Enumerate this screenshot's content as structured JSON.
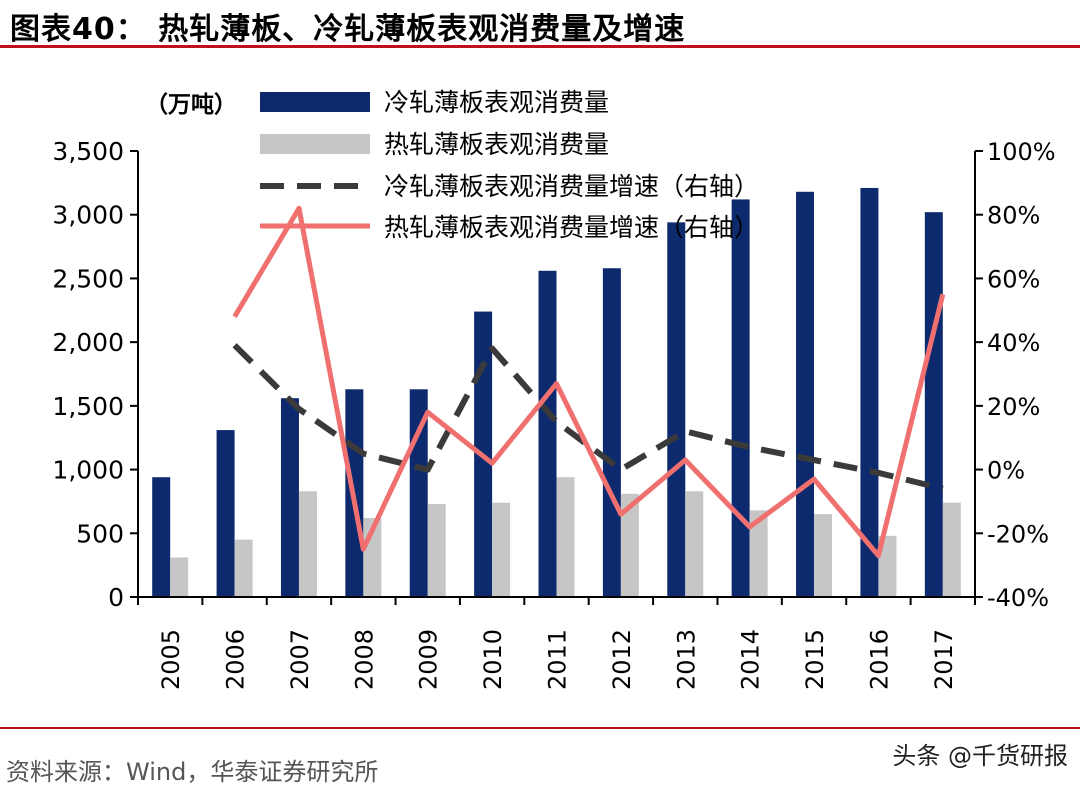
{
  "header": {
    "title": "图表40：   热轧薄板、冷轧薄板表观消费量及增速"
  },
  "footer": {
    "source": "资料来源：Wind，华泰证券研究所",
    "watermark": "头条 @千货研报"
  },
  "colors": {
    "accent_rule": "#c0101a",
    "cold_bar": "#0d2a6e",
    "hot_bar": "#c6c6c6",
    "cold_growth_line": "#3a3a3a",
    "hot_growth_line": "#f07070"
  },
  "chart_data": {
    "type": "bar",
    "unit_label": "（万吨）",
    "categories": [
      "2005",
      "2006",
      "2007",
      "2008",
      "2009",
      "2010",
      "2011",
      "2012",
      "2013",
      "2014",
      "2015",
      "2016",
      "2017"
    ],
    "series": [
      {
        "name": "冷轧薄板表观消费量",
        "kind": "bar",
        "axis": "left",
        "values": [
          940,
          1310,
          1560,
          1630,
          1630,
          2240,
          2560,
          2580,
          2940,
          3120,
          3180,
          3210,
          3020
        ]
      },
      {
        "name": "热轧薄板表观消费量",
        "kind": "bar",
        "axis": "left",
        "values": [
          310,
          450,
          830,
          620,
          730,
          740,
          940,
          810,
          830,
          680,
          650,
          480,
          740
        ]
      },
      {
        "name": "冷轧薄板表观消费量增速（右轴）",
        "kind": "line-dashed",
        "axis": "right",
        "values": [
          null,
          39,
          19,
          5,
          0,
          38,
          15,
          0,
          12,
          7,
          3,
          -1,
          -6
        ]
      },
      {
        "name": "热轧薄板表观消费量增速（右轴）",
        "kind": "line",
        "axis": "right",
        "values": [
          null,
          48,
          82,
          -25,
          18,
          2,
          27,
          -14,
          3,
          -18,
          -3,
          -27,
          55
        ]
      }
    ],
    "left_axis": {
      "min": 0,
      "max": 3500,
      "step": 500,
      "tick_labels": [
        "0",
        "500",
        "1,000",
        "1,500",
        "2,000",
        "2,500",
        "3,000",
        "3,500"
      ]
    },
    "right_axis": {
      "min": -40,
      "max": 100,
      "step": 20,
      "tick_labels": [
        "-40%",
        "-20%",
        "0%",
        "20%",
        "40%",
        "60%",
        "80%",
        "100%"
      ]
    },
    "legend_position": "top-center",
    "grid": false
  }
}
